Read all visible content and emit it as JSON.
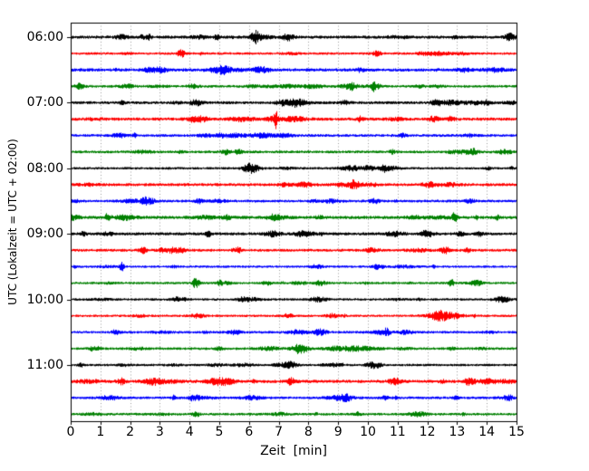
{
  "chart_data": {
    "type": "line",
    "subtype": "seismogram-dayplot",
    "title": "",
    "xlabel": "Zeit  [min]",
    "ylabel": "UTC (Lokalzeit = UTC + 02:00)",
    "x_axis": {
      "min": 0,
      "max": 15,
      "minutes_per_row": 15
    },
    "x_tick_labels": [
      "0",
      "1",
      "2",
      "3",
      "4",
      "5",
      "6",
      "7",
      "8",
      "9",
      "10",
      "11",
      "12",
      "13",
      "14",
      "15"
    ],
    "y_hour_labels": [
      "06:00",
      "07:00",
      "08:00",
      "09:00",
      "10:00",
      "11:00"
    ],
    "rows": 24,
    "rows_per_hour": 4,
    "trace_color_cycle": [
      "#000000",
      "#ff0000",
      "#0000ff",
      "#008000"
    ],
    "grid": {
      "vertical_dotted": true,
      "color": "#808080",
      "legend": "none"
    },
    "notable_bursts": [
      [
        0,
        6.2,
        3.5,
        0.15
      ],
      [
        0,
        7.3,
        1.8,
        0.2
      ],
      [
        0,
        4.9,
        1.2,
        0.1
      ],
      [
        1,
        3.7,
        2.0,
        0.12
      ],
      [
        1,
        10.3,
        1.8,
        0.15
      ],
      [
        2,
        6.3,
        1.2,
        0.2
      ],
      [
        3,
        0.3,
        1.8,
        0.15
      ],
      [
        3,
        10.2,
        2.2,
        0.2
      ],
      [
        4,
        4.2,
        1.6,
        0.2
      ],
      [
        4,
        7.5,
        2.2,
        0.3
      ],
      [
        4,
        9.2,
        1.5,
        0.15
      ],
      [
        4,
        12.3,
        1.6,
        0.2
      ],
      [
        5,
        6.9,
        4.5,
        0.06
      ],
      [
        5,
        12.2,
        1.5,
        0.15
      ],
      [
        6,
        4.5,
        1.0,
        0.2
      ],
      [
        7,
        5.2,
        1.6,
        0.15
      ],
      [
        7,
        13.4,
        1.4,
        0.3
      ],
      [
        8,
        6.1,
        3.0,
        0.25
      ],
      [
        8,
        10.0,
        1.8,
        0.2
      ],
      [
        9,
        7.2,
        0.8,
        0.2
      ],
      [
        10,
        2.5,
        1.6,
        0.12
      ],
      [
        10,
        4.3,
        1.4,
        0.12
      ],
      [
        10,
        10.2,
        1.6,
        0.15
      ],
      [
        11,
        12.9,
        4.0,
        0.07
      ],
      [
        11,
        6.8,
        1.5,
        0.2
      ],
      [
        12,
        4.6,
        2.5,
        0.08
      ],
      [
        12,
        6.8,
        1.6,
        0.25
      ],
      [
        12,
        12.0,
        1.6,
        0.2
      ],
      [
        13,
        2.4,
        2.0,
        0.12
      ],
      [
        13,
        5.6,
        1.6,
        0.15
      ],
      [
        13,
        12.6,
        1.8,
        0.2
      ],
      [
        14,
        1.7,
        3.5,
        0.07
      ],
      [
        14,
        10.3,
        1.6,
        0.15
      ],
      [
        15,
        4.2,
        3.8,
        0.12
      ],
      [
        15,
        5.0,
        2.0,
        0.1
      ],
      [
        15,
        6.6,
        1.6,
        0.15
      ],
      [
        15,
        12.8,
        2.5,
        0.1
      ],
      [
        16,
        5.8,
        1.6,
        0.2
      ],
      [
        16,
        14.5,
        2.2,
        0.25
      ],
      [
        17,
        7.3,
        1.5,
        0.15
      ],
      [
        17,
        12.5,
        2.0,
        0.5
      ],
      [
        18,
        1.5,
        1.8,
        0.12
      ],
      [
        18,
        5.5,
        1.6,
        0.2
      ],
      [
        18,
        10.5,
        1.5,
        0.3
      ],
      [
        19,
        7.7,
        3.5,
        0.25
      ],
      [
        19,
        9.5,
        1.5,
        0.8
      ],
      [
        20,
        0.3,
        2.2,
        0.08
      ],
      [
        20,
        7.4,
        1.8,
        0.2
      ],
      [
        20,
        10.1,
        1.6,
        0.2
      ],
      [
        21,
        1.7,
        1.6,
        0.12
      ],
      [
        21,
        7.4,
        1.8,
        0.15
      ],
      [
        21,
        10.9,
        1.6,
        0.2
      ],
      [
        21,
        13.4,
        1.8,
        0.2
      ],
      [
        22,
        4.1,
        1.8,
        0.12
      ],
      [
        22,
        9.0,
        1.5,
        0.4
      ],
      [
        23,
        7.0,
        0.8,
        0.3
      ]
    ]
  }
}
